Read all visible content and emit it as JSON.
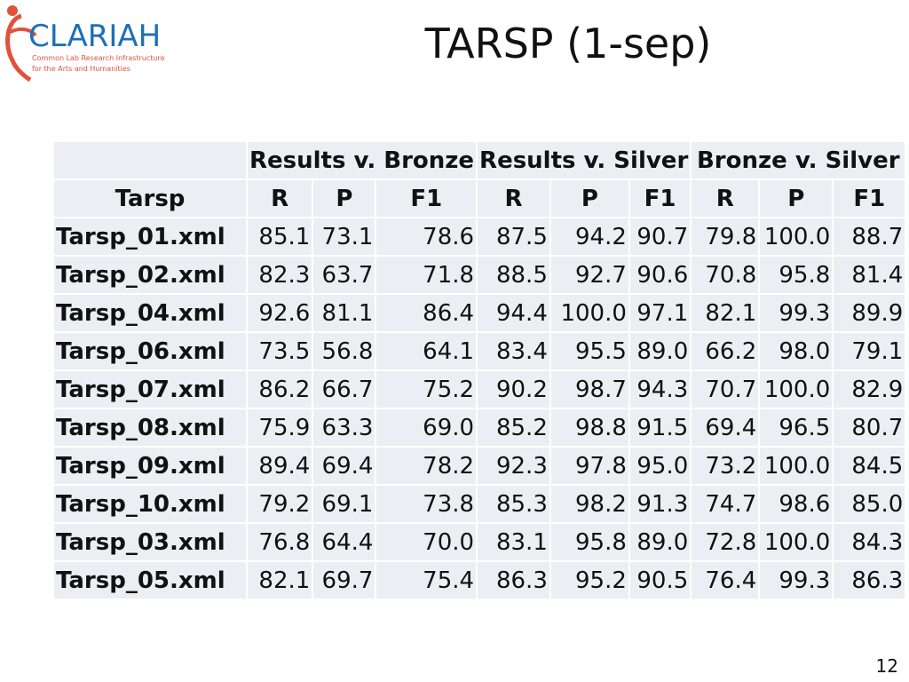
{
  "logo": {
    "name": "CLARIAH",
    "line1": "Common Lab Research Infrastructure",
    "line2": "for the Arts and Humanities"
  },
  "title": "TARSP (1-sep)",
  "table": {
    "groups": [
      "Results v. Bronze",
      "Results v. Silver",
      "Bronze v. Silver"
    ],
    "columns": [
      "Tarsp",
      "R",
      "P",
      "F1",
      "R",
      "P",
      "F1",
      "R",
      "P",
      "F1"
    ],
    "rows": [
      [
        "Tarsp_01.xml",
        "85.1",
        "73.1",
        "78.6",
        "87.5",
        "94.2",
        "90.7",
        "79.8",
        "100.0",
        "88.7"
      ],
      [
        "Tarsp_02.xml",
        "82.3",
        "63.7",
        "71.8",
        "88.5",
        "92.7",
        "90.6",
        "70.8",
        "95.8",
        "81.4"
      ],
      [
        "Tarsp_04.xml",
        "92.6",
        "81.1",
        "86.4",
        "94.4",
        "100.0",
        "97.1",
        "82.1",
        "99.3",
        "89.9"
      ],
      [
        "Tarsp_06.xml",
        "73.5",
        "56.8",
        "64.1",
        "83.4",
        "95.5",
        "89.0",
        "66.2",
        "98.0",
        "79.1"
      ],
      [
        "Tarsp_07.xml",
        "86.2",
        "66.7",
        "75.2",
        "90.2",
        "98.7",
        "94.3",
        "70.7",
        "100.0",
        "82.9"
      ],
      [
        "Tarsp_08.xml",
        "75.9",
        "63.3",
        "69.0",
        "85.2",
        "98.8",
        "91.5",
        "69.4",
        "96.5",
        "80.7"
      ],
      [
        "Tarsp_09.xml",
        "89.4",
        "69.4",
        "78.2",
        "92.3",
        "97.8",
        "95.0",
        "73.2",
        "100.0",
        "84.5"
      ],
      [
        "Tarsp_10.xml",
        "79.2",
        "69.1",
        "73.8",
        "85.3",
        "98.2",
        "91.3",
        "74.7",
        "98.6",
        "85.0"
      ],
      [
        "Tarsp_03.xml",
        "76.8",
        "64.4",
        "70.0",
        "83.1",
        "95.8",
        "89.0",
        "72.8",
        "100.0",
        "84.3"
      ],
      [
        "Tarsp_05.xml",
        "82.1",
        "69.7",
        "75.4",
        "86.3",
        "95.2",
        "90.5",
        "76.4",
        "99.3",
        "86.3"
      ]
    ]
  },
  "page_number": "12"
}
